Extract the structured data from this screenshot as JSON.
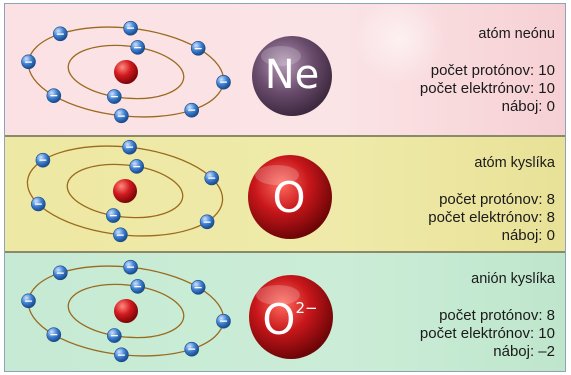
{
  "panels": [
    {
      "title": "atóm neónu",
      "symbol": "Ne",
      "superscript": "",
      "lines": [
        "počet protónov: 10",
        "počet elektrónov: 10",
        "náboj: 0"
      ]
    },
    {
      "title": "atóm kyslíka",
      "symbol": "O",
      "superscript": "",
      "lines": [
        "počet protónov: 8",
        "počet elektrónov: 8",
        "náboj: 0"
      ]
    },
    {
      "title": "anión kyslíka",
      "symbol": "O",
      "superscript": "2−",
      "lines": [
        "počet protónov: 8",
        "počet elektrónov: 10",
        "náboj: –2"
      ]
    }
  ],
  "electron_counts": {
    "neon": 10,
    "oxygen_atom": 8,
    "oxygen_anion": 10
  },
  "electron_sign": "−",
  "colors": {
    "neon_panel": "#fbe1e4",
    "oxygen_panel": "#ede8a3",
    "anion_panel": "#c6ead3",
    "neon_sphere": "#6a4c6c",
    "oxygen_sphere": "#c8171b",
    "electron": "#2f6fc2",
    "orbit": "#9a6a1e",
    "nucleus": "#c8141a"
  }
}
